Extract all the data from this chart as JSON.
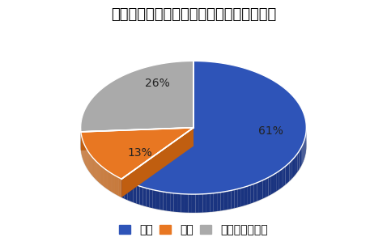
{
  "title": "ハイエースの運転＆走行性能の満足度調査",
  "labels": [
    "満足",
    "不満",
    "どちらでもない"
  ],
  "values": [
    61,
    13,
    26
  ],
  "colors_top": [
    "#2E54B8",
    "#E87722",
    "#AAAAAA"
  ],
  "colors_side": [
    "#1A3480",
    "#C05E10",
    "#777777"
  ],
  "pct_labels": [
    "61%",
    "13%",
    "26%"
  ],
  "startangle": 90,
  "title_fontsize": 13,
  "pct_fontsize": 10,
  "legend_fontsize": 9,
  "background_color": "#ffffff"
}
